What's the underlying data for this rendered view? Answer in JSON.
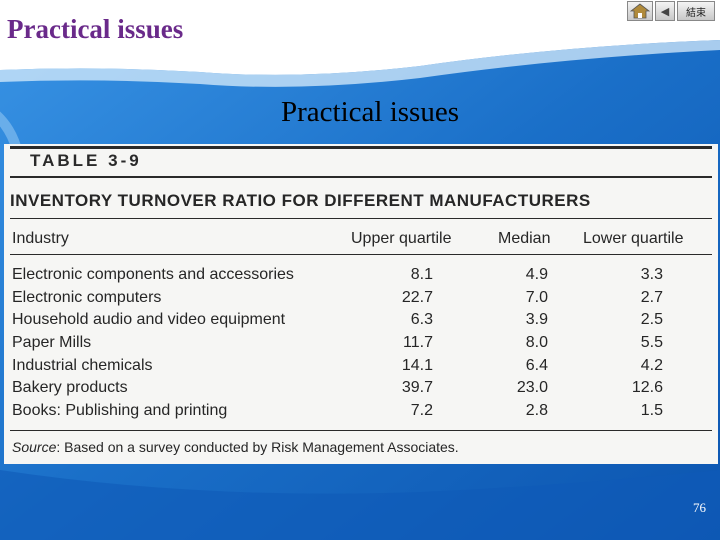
{
  "header": {
    "title": "Practical issues",
    "nav": {
      "home_icon": "home-icon",
      "back_icon": "back-arrow-icon",
      "end_label": "結束"
    }
  },
  "slide": {
    "title": "Practical issues",
    "page_number": "76"
  },
  "table": {
    "label": "TABLE 3-9",
    "heading": "INVENTORY TURNOVER RATIO FOR DIFFERENT MANUFACTURERS",
    "columns": [
      "Industry",
      "Upper quartile",
      "Median",
      "Lower quartile"
    ],
    "rows": [
      {
        "industry": "Electronic components and accessories",
        "upper": "8.1",
        "median": "4.9",
        "lower": "3.3"
      },
      {
        "industry": "Electronic computers",
        "upper": "22.7",
        "median": "7.0",
        "lower": "2.7"
      },
      {
        "industry": "Household audio and video equipment",
        "upper": "6.3",
        "median": "3.9",
        "lower": "2.5"
      },
      {
        "industry": "Paper Mills",
        "upper": "11.7",
        "median": "8.0",
        "lower": "5.5"
      },
      {
        "industry": "Industrial chemicals",
        "upper": "14.1",
        "median": "6.4",
        "lower": "4.2"
      },
      {
        "industry": "Bakery products",
        "upper": "39.7",
        "median": "23.0",
        "lower": "12.6"
      },
      {
        "industry": "Books: Publishing and printing",
        "upper": "7.2",
        "median": "2.8",
        "lower": "1.5"
      }
    ],
    "source_label": "Source",
    "source_text": ": Based on a survey conducted by Risk Management Associates."
  },
  "colors": {
    "background": "#1a6fc8",
    "header_band": "#ffffff",
    "header_title": "#6a2a8a",
    "table_bg": "#f6f6f4"
  }
}
